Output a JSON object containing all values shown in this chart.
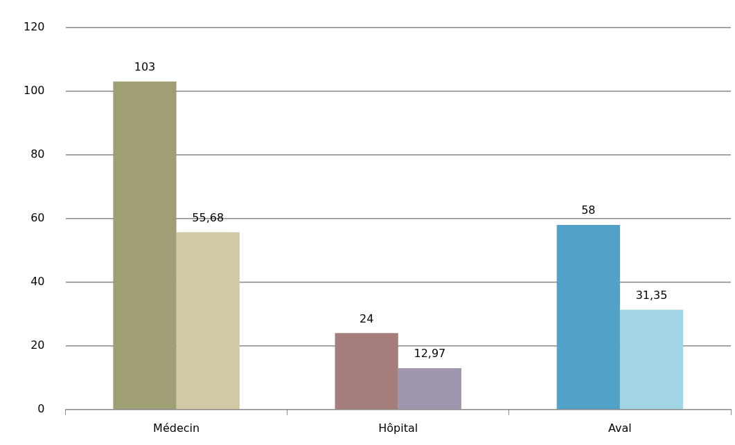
{
  "chart_data": {
    "type": "bar",
    "categories": [
      "Médecin",
      "Hôpital",
      "Aval"
    ],
    "series": [
      {
        "colors": [
          "#a09e74",
          "#a57e7c",
          "#51a1c8"
        ],
        "values": [
          103,
          24,
          58
        ],
        "value_labels": [
          "103",
          "24",
          "58"
        ]
      },
      {
        "colors": [
          "#d1c8a6",
          "#a096ae",
          "#a3d6e4"
        ],
        "values": [
          55.68,
          12.97,
          31.35
        ],
        "value_labels": [
          "55,68",
          "12,97",
          "31,35"
        ]
      }
    ],
    "ylim": [
      0,
      120
    ],
    "yticks": [
      0,
      20,
      40,
      60,
      80,
      100,
      120
    ],
    "grid": "y",
    "legend": false
  }
}
